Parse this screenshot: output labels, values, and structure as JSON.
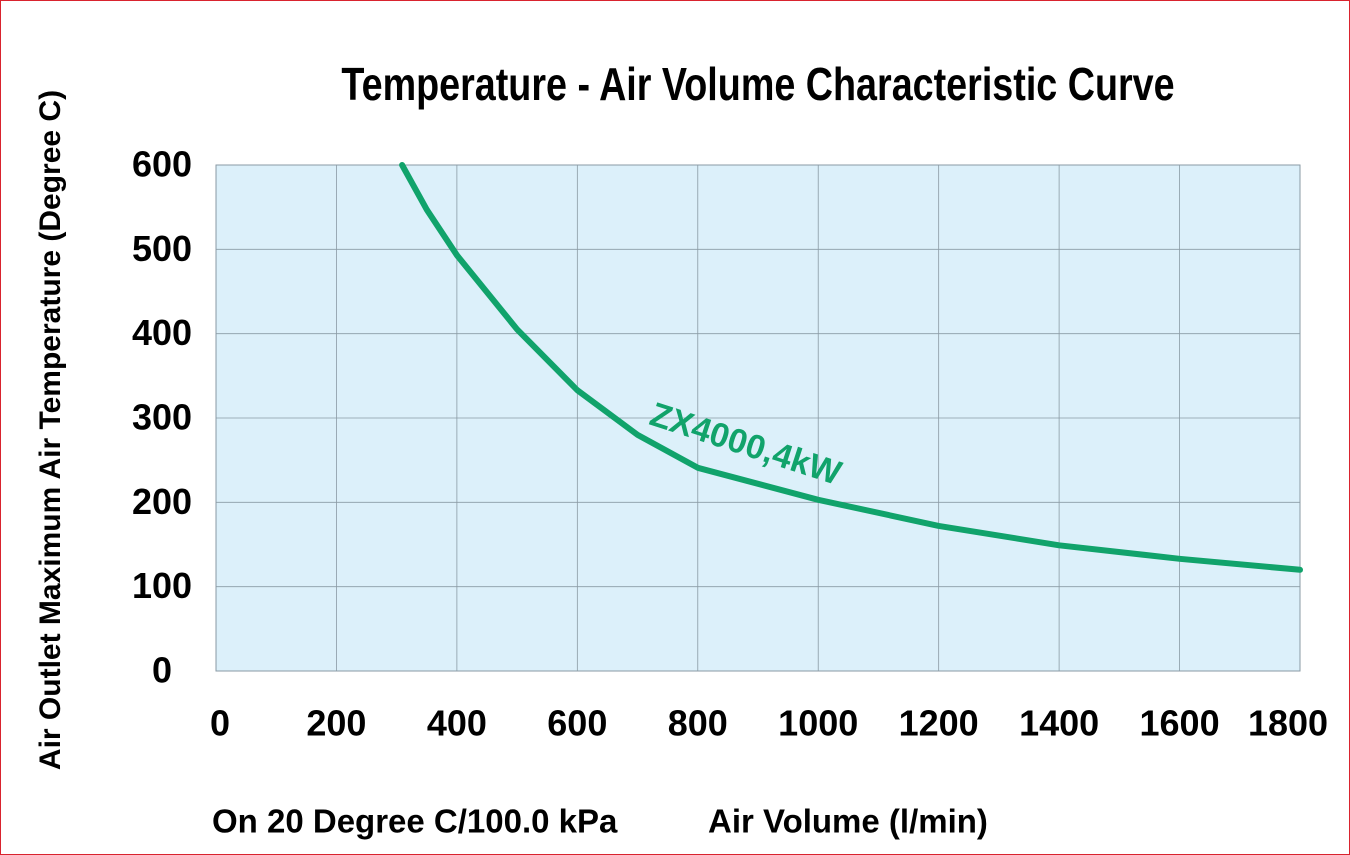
{
  "chart_data": {
    "type": "line",
    "title": "Temperature - Air Volume Characteristic Curve",
    "y_label": "Air Outlet Maximum Air Temperature (Degree C)",
    "x_label": "Air Volume (l/min)",
    "note": "On 20 Degree C/100.0 kPa",
    "x": [
      309,
      350,
      400,
      500,
      600,
      700,
      800,
      1000,
      1200,
      1400,
      1600,
      1800
    ],
    "series": [
      {
        "name": "ZX4000,4kW",
        "color": "#11a36b",
        "values": [
          600,
          547,
          493,
          405,
          333,
          280,
          241,
          203,
          172,
          149,
          133,
          120
        ]
      }
    ],
    "xlim": [
      0,
      1800
    ],
    "xticks": [
      0,
      200,
      400,
      600,
      800,
      1000,
      1200,
      1400,
      1600,
      1800
    ],
    "ylim": [
      0,
      600
    ],
    "yticks": [
      0,
      100,
      200,
      300,
      400,
      500,
      600
    ],
    "grid": true
  }
}
